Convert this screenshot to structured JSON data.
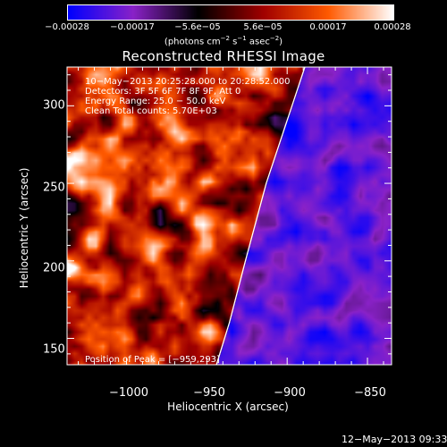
{
  "chart_data": {
    "type": "heatmap",
    "title": "Reconstructed RHESSI Image",
    "xlabel": "Heliocentric X (arcsec)",
    "ylabel": "Heliocentric Y (arcsec)",
    "xlim": [
      -1037,
      -835
    ],
    "ylim": [
      133,
      325
    ],
    "xticks": [
      -1000,
      -950,
      -900,
      -850
    ],
    "yticks": [
      150,
      200,
      250,
      300
    ],
    "xtick_labels": [
      "−1000",
      "−950",
      "−900",
      "−850"
    ],
    "ytick_labels": [
      "150",
      "200",
      "250",
      "300"
    ],
    "colorbar": {
      "range": [
        -0.00028,
        0.00028
      ],
      "colors": [
        "#0000ff",
        "#8a22c8",
        "#000000",
        "#a00000",
        "#ff5a00",
        "#ffffff"
      ],
      "tick_values": [
        -0.00028,
        -0.00017,
        -5.6e-05,
        5.6e-05,
        0.00017,
        0.00028
      ],
      "tick_labels": [
        "−0.00028",
        "−0.00017",
        "−5.6e−05",
        "5.6e−05",
        "0.00017",
        "0.00028"
      ],
      "unit_text": "(photons cm",
      "unit_exp1": "−2",
      "unit_mid1": " s",
      "unit_exp2": "−1",
      "unit_mid2": " asec",
      "unit_exp3": "−2",
      "unit_end": ")"
    },
    "info_lines": [
      "10−May−2013 20:25:28.000 to 20:28:52.000",
      "Detectors: 3F 5F 6F 7F 8F 9F, Att 0",
      "Energy Range: 25.0 − 50.0 keV",
      "Clean     Total counts: 5.70E+03"
    ],
    "peak_label": "Position of Peak = [−959,293]",
    "peak_position": [
      -959,
      293
    ],
    "limb_curve": [
      [
        -944,
        133
      ],
      [
        -936,
        160
      ],
      [
        -926,
        200
      ],
      [
        -913,
        250
      ],
      [
        -897,
        300
      ],
      [
        -889,
        325
      ]
    ],
    "limb_color": "#ffffff",
    "grid": false
  },
  "footer": {
    "datestamp": "12−May−2013 09:33"
  }
}
